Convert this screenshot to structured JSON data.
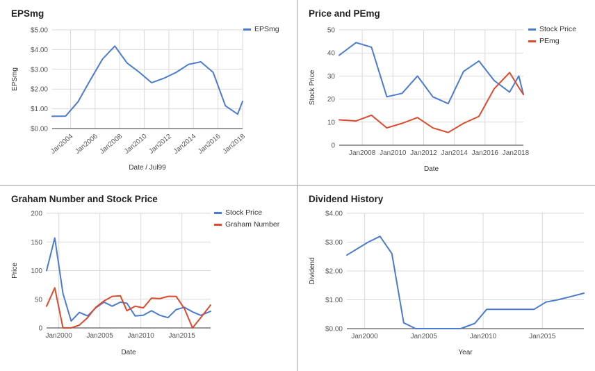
{
  "colors": {
    "blue": "#4a7bd0",
    "red": "#dc4a2b",
    "grid": "#d9d9d9",
    "axis": "#333333"
  },
  "chart_data": [
    {
      "type": "line",
      "title": "EPSmg",
      "xlabel": "Date / Jul99",
      "ylabel": "EPSmg",
      "xlim": [
        2002.5,
        2018.0
      ],
      "ylim": [
        0,
        5
      ],
      "x_ticks": [
        {
          "v": 2004,
          "label": "Jan2004"
        },
        {
          "v": 2006,
          "label": "Jan2006"
        },
        {
          "v": 2008,
          "label": "Jan2008"
        },
        {
          "v": 2010,
          "label": "Jan2010"
        },
        {
          "v": 2012,
          "label": "Jan2012"
        },
        {
          "v": 2014,
          "label": "Jan2014"
        },
        {
          "v": 2016,
          "label": "Jan2016"
        },
        {
          "v": 2018,
          "label": "Jan2018"
        }
      ],
      "y_ticks": [
        {
          "v": 0,
          "label": "$0.00"
        },
        {
          "v": 1,
          "label": "$1.00"
        },
        {
          "v": 2,
          "label": "$2.00"
        },
        {
          "v": 3,
          "label": "$3.00"
        },
        {
          "v": 4,
          "label": "$4.00"
        },
        {
          "v": 5,
          "label": "$5.00"
        }
      ],
      "legend_position": "top-right",
      "series": [
        {
          "name": "EPSmg",
          "color": "#4a7bd0",
          "x": [
            2002.5,
            2003.6,
            2004.6,
            2005.6,
            2006.6,
            2007.6,
            2008.6,
            2009.6,
            2010.6,
            2011.6,
            2012.6,
            2013.6,
            2014.6,
            2015.6,
            2016.6,
            2017.6,
            2018.0
          ],
          "y": [
            0.62,
            0.63,
            1.35,
            2.45,
            3.52,
            4.18,
            3.32,
            2.85,
            2.32,
            2.55,
            2.85,
            3.25,
            3.38,
            2.85,
            1.15,
            0.73,
            1.38
          ]
        }
      ]
    },
    {
      "type": "line",
      "title": "Price and PEmg",
      "xlabel": "Date",
      "ylabel": "Stock Price",
      "xlim": [
        2006.5,
        2018.5
      ],
      "ylim": [
        0,
        50
      ],
      "x_ticks": [
        {
          "v": 2008,
          "label": "Jan2008"
        },
        {
          "v": 2010,
          "label": "Jan2010"
        },
        {
          "v": 2012,
          "label": "Jan2012"
        },
        {
          "v": 2014,
          "label": "Jan2014"
        },
        {
          "v": 2016,
          "label": "Jan2016"
        },
        {
          "v": 2018,
          "label": "Jan2018"
        }
      ],
      "y_ticks": [
        {
          "v": 0,
          "label": "0"
        },
        {
          "v": 10,
          "label": "10"
        },
        {
          "v": 20,
          "label": "20"
        },
        {
          "v": 30,
          "label": "30"
        },
        {
          "v": 40,
          "label": "40"
        },
        {
          "v": 50,
          "label": "50"
        }
      ],
      "legend_position": "top-right",
      "series": [
        {
          "name": "Stock Price",
          "color": "#4a7bd0",
          "x": [
            2006.5,
            2007.6,
            2008.6,
            2009.6,
            2010.6,
            2011.6,
            2012.6,
            2013.6,
            2014.6,
            2015.6,
            2016.6,
            2017.6,
            2018.2,
            2018.5
          ],
          "y": [
            39,
            44.5,
            42.5,
            21,
            22.5,
            30,
            21,
            18,
            32,
            36.5,
            28,
            23,
            30,
            22
          ]
        },
        {
          "name": "PEmg",
          "color": "#dc4a2b",
          "x": [
            2006.5,
            2007.6,
            2008.6,
            2009.6,
            2010.6,
            2011.6,
            2012.6,
            2013.6,
            2014.6,
            2015.6,
            2016.6,
            2017.6,
            2018.2,
            2018.5
          ],
          "y": [
            11,
            10.5,
            13,
            7.5,
            9.5,
            12,
            7.5,
            5.5,
            9.5,
            12.5,
            24.5,
            31.5,
            25,
            22
          ]
        }
      ]
    },
    {
      "type": "line",
      "title": "Graham Number and Stock Price",
      "xlabel": "Date",
      "ylabel": "Price",
      "xlim": [
        1998.5,
        2018.5
      ],
      "ylim": [
        0,
        200
      ],
      "x_ticks": [
        {
          "v": 2000,
          "label": "Jan2000"
        },
        {
          "v": 2005,
          "label": "Jan2005"
        },
        {
          "v": 2010,
          "label": "Jan2010"
        },
        {
          "v": 2015,
          "label": "Jan2015"
        }
      ],
      "y_ticks": [
        {
          "v": 0,
          "label": "0"
        },
        {
          "v": 50,
          "label": "50"
        },
        {
          "v": 100,
          "label": "100"
        },
        {
          "v": 150,
          "label": "150"
        },
        {
          "v": 200,
          "label": "200"
        }
      ],
      "legend_position": "top-right",
      "series": [
        {
          "name": "Stock Price",
          "color": "#4a7bd0",
          "x": [
            1998.5,
            1999.5,
            2000.5,
            2001.5,
            2002.5,
            2003.5,
            2004.5,
            2005.5,
            2006.5,
            2007.5,
            2008.3,
            2009.3,
            2010.3,
            2011.3,
            2012.3,
            2013.3,
            2014.3,
            2015.3,
            2016.3,
            2017.3,
            2018.5
          ],
          "y": [
            100,
            157,
            60,
            12,
            27,
            21,
            35,
            45,
            38,
            45,
            43,
            21,
            22,
            30,
            22,
            18,
            32,
            36,
            28,
            22,
            29
          ]
        },
        {
          "name": "Graham Number",
          "color": "#dc4a2b",
          "x": [
            1998.5,
            1999.5,
            2000.5,
            2001.5,
            2002.5,
            2003.5,
            2004.5,
            2005.5,
            2006.5,
            2007.5,
            2008.3,
            2009.3,
            2010.3,
            2011.3,
            2012.3,
            2013.3,
            2014.3,
            2015.3,
            2016.3,
            2017.3,
            2018.5
          ],
          "y": [
            38,
            70,
            0,
            0,
            5,
            18,
            36,
            47,
            55,
            56,
            30,
            38,
            35,
            52,
            51,
            55,
            55,
            34,
            0,
            18,
            40
          ]
        }
      ]
    },
    {
      "type": "line",
      "title": "Dividend History",
      "xlabel": "Year",
      "ylabel": "Dividend",
      "xlim": [
        1998.5,
        2018.5
      ],
      "ylim": [
        0,
        4
      ],
      "x_ticks": [
        {
          "v": 2000,
          "label": "Jan2000"
        },
        {
          "v": 2005,
          "label": "Jan2005"
        },
        {
          "v": 2010,
          "label": "Jan2010"
        },
        {
          "v": 2015,
          "label": "Jan2015"
        }
      ],
      "y_ticks": [
        {
          "v": 0,
          "label": "$0.00"
        },
        {
          "v": 1,
          "label": "$1.00"
        },
        {
          "v": 2,
          "label": "$2.00"
        },
        {
          "v": 3,
          "label": "$3.00"
        },
        {
          "v": 4,
          "label": "$4.00"
        }
      ],
      "legend_position": "none",
      "series": [
        {
          "name": "",
          "color": "#4a7bd0",
          "x": [
            1998.5,
            2000.3,
            2001.3,
            2002.3,
            2003.3,
            2004.3,
            2008.1,
            2009.3,
            2010.3,
            2014.3,
            2015.3,
            2016.3,
            2017.3,
            2018.5
          ],
          "y": [
            2.55,
            3.0,
            3.2,
            2.6,
            0.2,
            0.0,
            0.0,
            0.18,
            0.67,
            0.67,
            0.92,
            1.0,
            1.1,
            1.23
          ]
        }
      ]
    }
  ]
}
